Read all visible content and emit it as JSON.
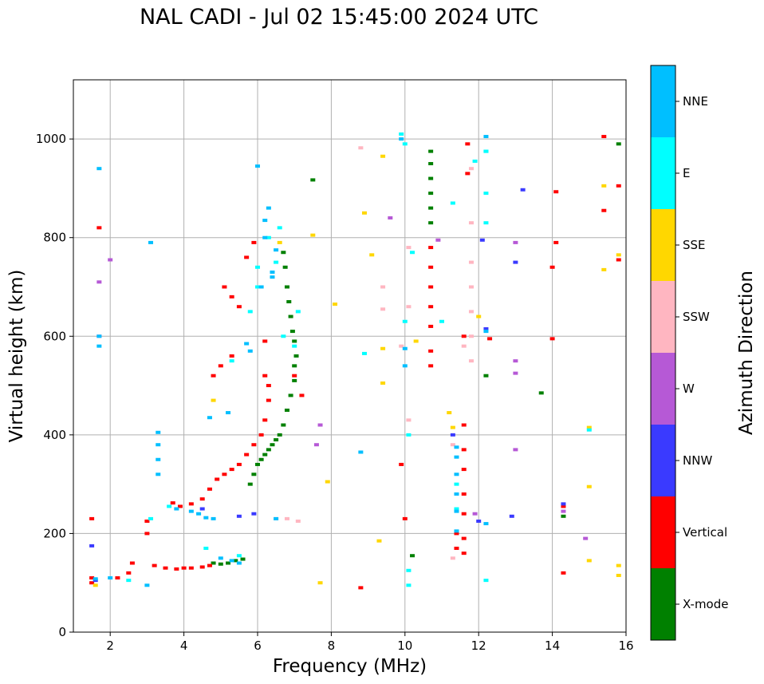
{
  "chart_data": {
    "type": "scatter",
    "title": "NAL CADI - Jul 02 15:45:00 2024 UTC",
    "xlabel": "Frequency (MHz)",
    "ylabel": "Virtual height (km)",
    "xlim": [
      1,
      16
    ],
    "ylim": [
      0,
      1120
    ],
    "xticks": [
      2,
      4,
      6,
      8,
      10,
      12,
      14,
      16
    ],
    "yticks": [
      0,
      200,
      400,
      600,
      800,
      1000
    ],
    "grid": true,
    "colorbar": {
      "title": "Azimuth Direction",
      "categories": [
        {
          "label": "X-mode",
          "color": "#008000"
        },
        {
          "label": "Vertical",
          "color": "#ff0000"
        },
        {
          "label": "NNW",
          "color": "#3a3aff"
        },
        {
          "label": "W",
          "color": "#b659d6"
        },
        {
          "label": "SSW",
          "color": "#ffb6c1"
        },
        {
          "label": "SSE",
          "color": "#ffd700"
        },
        {
          "label": "E",
          "color": "#00ffff"
        },
        {
          "label": "NNE",
          "color": "#00bfff"
        }
      ]
    },
    "series": [
      {
        "name": "X-mode",
        "points": [
          [
            4.8,
            140
          ],
          [
            5.0,
            138
          ],
          [
            5.2,
            140
          ],
          [
            5.4,
            145
          ],
          [
            5.6,
            148
          ],
          [
            5.8,
            300
          ],
          [
            5.9,
            320
          ],
          [
            6.0,
            340
          ],
          [
            6.1,
            350
          ],
          [
            6.2,
            360
          ],
          [
            6.3,
            370
          ],
          [
            6.4,
            380
          ],
          [
            6.5,
            390
          ],
          [
            6.6,
            400
          ],
          [
            6.7,
            420
          ],
          [
            6.8,
            450
          ],
          [
            6.9,
            480
          ],
          [
            7.0,
            510
          ],
          [
            7.0,
            540
          ],
          [
            7.05,
            560
          ],
          [
            7.0,
            590
          ],
          [
            6.95,
            610
          ],
          [
            6.9,
            640
          ],
          [
            6.85,
            670
          ],
          [
            6.8,
            700
          ],
          [
            6.75,
            740
          ],
          [
            6.7,
            770
          ],
          [
            10.7,
            830
          ],
          [
            10.7,
            860
          ],
          [
            10.7,
            890
          ],
          [
            10.7,
            920
          ],
          [
            10.7,
            950
          ],
          [
            10.7,
            975
          ],
          [
            13.7,
            485
          ],
          [
            14.3,
            235
          ],
          [
            15.8,
            990
          ],
          [
            7.5,
            917
          ],
          [
            10.2,
            155
          ],
          [
            12.2,
            520
          ]
        ]
      },
      {
        "name": "Vertical",
        "points": [
          [
            1.5,
            100
          ],
          [
            1.5,
            110
          ],
          [
            1.5,
            230
          ],
          [
            1.7,
            820
          ],
          [
            2.2,
            110
          ],
          [
            2.5,
            120
          ],
          [
            2.6,
            140
          ],
          [
            3.0,
            200
          ],
          [
            3.0,
            225
          ],
          [
            3.2,
            135
          ],
          [
            3.5,
            130
          ],
          [
            3.8,
            128
          ],
          [
            4.0,
            130
          ],
          [
            4.2,
            130
          ],
          [
            4.5,
            132
          ],
          [
            4.7,
            135
          ],
          [
            3.7,
            262
          ],
          [
            3.9,
            255
          ],
          [
            4.2,
            260
          ],
          [
            4.5,
            270
          ],
          [
            4.7,
            290
          ],
          [
            4.9,
            310
          ],
          [
            5.1,
            320
          ],
          [
            5.3,
            330
          ],
          [
            5.5,
            340
          ],
          [
            5.7,
            360
          ],
          [
            5.9,
            380
          ],
          [
            6.1,
            400
          ],
          [
            6.2,
            430
          ],
          [
            6.3,
            470
          ],
          [
            6.3,
            500
          ],
          [
            6.2,
            520
          ],
          [
            5.3,
            560
          ],
          [
            5.0,
            540
          ],
          [
            4.8,
            520
          ],
          [
            6.2,
            590
          ],
          [
            5.5,
            660
          ],
          [
            5.3,
            680
          ],
          [
            5.1,
            700
          ],
          [
            5.7,
            760
          ],
          [
            5.9,
            790
          ],
          [
            7.0,
            520
          ],
          [
            7.2,
            480
          ],
          [
            10.0,
            230
          ],
          [
            9.9,
            340
          ],
          [
            10.7,
            540
          ],
          [
            10.7,
            620
          ],
          [
            10.7,
            660
          ],
          [
            10.7,
            700
          ],
          [
            10.7,
            740
          ],
          [
            10.7,
            780
          ],
          [
            11.4,
            170
          ],
          [
            11.4,
            200
          ],
          [
            11.6,
            160
          ],
          [
            11.6,
            190
          ],
          [
            11.6,
            240
          ],
          [
            11.6,
            280
          ],
          [
            11.6,
            330
          ],
          [
            11.6,
            370
          ],
          [
            11.6,
            420
          ],
          [
            11.6,
            600
          ],
          [
            11.7,
            930
          ],
          [
            11.7,
            990
          ],
          [
            14.0,
            595
          ],
          [
            14.0,
            740
          ],
          [
            14.1,
            790
          ],
          [
            14.1,
            893
          ],
          [
            15.4,
            855
          ],
          [
            15.4,
            1005
          ],
          [
            15.8,
            755
          ],
          [
            15.8,
            905
          ],
          [
            14.3,
            120
          ],
          [
            14.3,
            255
          ],
          [
            8.8,
            90
          ],
          [
            10.7,
            570
          ],
          [
            12.3,
            595
          ]
        ]
      },
      {
        "name": "NNW",
        "points": [
          [
            1.5,
            175
          ],
          [
            1.6,
            105
          ],
          [
            4.5,
            250
          ],
          [
            5.5,
            235
          ],
          [
            5.9,
            240
          ],
          [
            12.0,
            225
          ],
          [
            12.9,
            235
          ],
          [
            13.0,
            750
          ],
          [
            13.2,
            897
          ],
          [
            14.3,
            260
          ],
          [
            12.1,
            795
          ],
          [
            12.2,
            615
          ],
          [
            11.3,
            400
          ]
        ]
      },
      {
        "name": "W",
        "points": [
          [
            2.0,
            755
          ],
          [
            1.7,
            600
          ],
          [
            1.7,
            710
          ],
          [
            7.7,
            420
          ],
          [
            7.6,
            380
          ],
          [
            9.6,
            840
          ],
          [
            10.9,
            795
          ],
          [
            13.0,
            550
          ],
          [
            13.0,
            525
          ],
          [
            13.0,
            370
          ],
          [
            13.0,
            790
          ],
          [
            14.3,
            245
          ],
          [
            14.9,
            190
          ],
          [
            11.9,
            240
          ]
        ]
      },
      {
        "name": "SSW",
        "points": [
          [
            6.5,
            230
          ],
          [
            6.8,
            230
          ],
          [
            7.1,
            225
          ],
          [
            8.8,
            982
          ],
          [
            9.4,
            700
          ],
          [
            9.4,
            655
          ],
          [
            9.9,
            580
          ],
          [
            10.1,
            660
          ],
          [
            10.1,
            780
          ],
          [
            11.3,
            380
          ],
          [
            11.6,
            580
          ],
          [
            11.8,
            550
          ],
          [
            11.8,
            600
          ],
          [
            11.8,
            650
          ],
          [
            11.8,
            700
          ],
          [
            11.8,
            750
          ],
          [
            11.8,
            830
          ],
          [
            11.8,
            940
          ],
          [
            11.3,
            150
          ],
          [
            10.1,
            430
          ]
        ]
      },
      {
        "name": "SSE",
        "points": [
          [
            1.6,
            95
          ],
          [
            4.8,
            470
          ],
          [
            6.6,
            790
          ],
          [
            7.5,
            805
          ],
          [
            7.9,
            305
          ],
          [
            8.1,
            665
          ],
          [
            8.9,
            850
          ],
          [
            9.1,
            765
          ],
          [
            9.4,
            965
          ],
          [
            9.4,
            575
          ],
          [
            9.4,
            505
          ],
          [
            10.3,
            590
          ],
          [
            11.2,
            445
          ],
          [
            11.3,
            415
          ],
          [
            12.0,
            640
          ],
          [
            15.0,
            415
          ],
          [
            15.0,
            295
          ],
          [
            15.0,
            145
          ],
          [
            15.4,
            905
          ],
          [
            15.4,
            735
          ],
          [
            15.8,
            135
          ],
          [
            15.8,
            115
          ],
          [
            15.8,
            765
          ],
          [
            9.3,
            185
          ],
          [
            7.7,
            100
          ]
        ]
      },
      {
        "name": "E",
        "points": [
          [
            2.5,
            105
          ],
          [
            3.1,
            230
          ],
          [
            3.6,
            255
          ],
          [
            5.3,
            550
          ],
          [
            5.8,
            650
          ],
          [
            6.0,
            740
          ],
          [
            6.0,
            700
          ],
          [
            6.5,
            750
          ],
          [
            6.6,
            820
          ],
          [
            6.7,
            600
          ],
          [
            7.0,
            580
          ],
          [
            7.1,
            650
          ],
          [
            8.9,
            565
          ],
          [
            9.9,
            1010
          ],
          [
            10.0,
            990
          ],
          [
            10.0,
            630
          ],
          [
            10.1,
            400
          ],
          [
            10.1,
            125
          ],
          [
            10.1,
            95
          ],
          [
            10.2,
            770
          ],
          [
            11.0,
            630
          ],
          [
            11.3,
            870
          ],
          [
            11.4,
            300
          ],
          [
            11.4,
            250
          ],
          [
            11.9,
            955
          ],
          [
            12.2,
            975
          ],
          [
            12.2,
            890
          ],
          [
            12.2,
            830
          ],
          [
            12.2,
            975
          ],
          [
            15.0,
            410
          ],
          [
            12.2,
            105
          ],
          [
            6.3,
            800
          ],
          [
            4.6,
            170
          ],
          [
            5.5,
            155
          ]
        ]
      },
      {
        "name": "NNE",
        "points": [
          [
            1.6,
            108
          ],
          [
            1.7,
            940
          ],
          [
            1.7,
            580
          ],
          [
            1.7,
            600
          ],
          [
            2.0,
            110
          ],
          [
            3.1,
            790
          ],
          [
            3.3,
            320
          ],
          [
            3.3,
            350
          ],
          [
            3.3,
            380
          ],
          [
            3.3,
            405
          ],
          [
            3.8,
            250
          ],
          [
            4.2,
            245
          ],
          [
            4.4,
            240
          ],
          [
            4.6,
            232
          ],
          [
            4.8,
            230
          ],
          [
            5.0,
            150
          ],
          [
            5.3,
            145
          ],
          [
            5.5,
            140
          ],
          [
            5.7,
            585
          ],
          [
            5.8,
            570
          ],
          [
            6.0,
            945
          ],
          [
            6.1,
            700
          ],
          [
            6.2,
            800
          ],
          [
            6.2,
            835
          ],
          [
            6.3,
            860
          ],
          [
            6.4,
            730
          ],
          [
            6.4,
            720
          ],
          [
            6.5,
            775
          ],
          [
            6.5,
            230
          ],
          [
            8.8,
            365
          ],
          [
            9.9,
            1000
          ],
          [
            10.0,
            575
          ],
          [
            10.0,
            540
          ],
          [
            11.4,
            205
          ],
          [
            11.4,
            245
          ],
          [
            11.4,
            280
          ],
          [
            11.4,
            320
          ],
          [
            11.4,
            355
          ],
          [
            11.4,
            375
          ],
          [
            12.2,
            1005
          ],
          [
            12.2,
            220
          ],
          [
            12.2,
            610
          ],
          [
            4.7,
            435
          ],
          [
            5.2,
            445
          ],
          [
            3.0,
            95
          ]
        ]
      }
    ]
  }
}
